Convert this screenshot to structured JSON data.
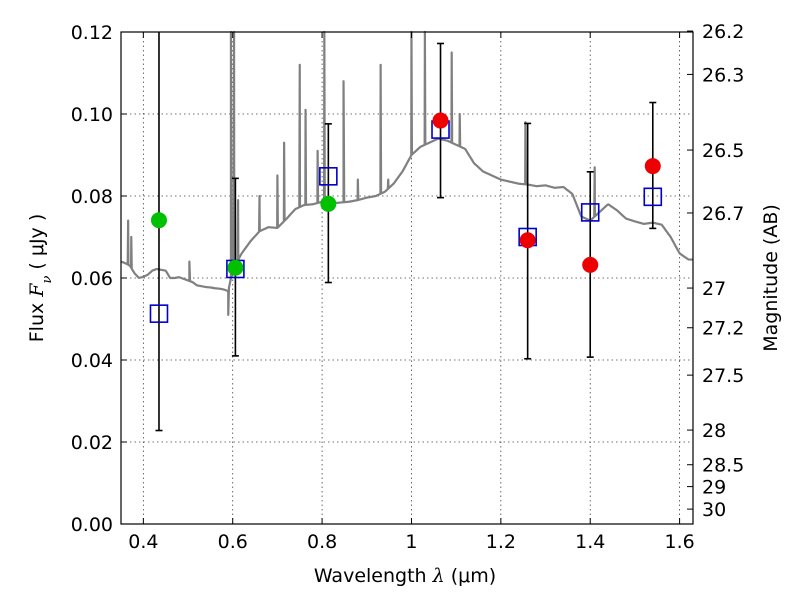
{
  "chart_data": {
    "type": "scatter",
    "xlabel": {
      "pre": "Wavelength  ",
      "var": "λ",
      "post": " (μm)"
    },
    "ylabel": {
      "pre": "Flux  ",
      "var": "F",
      "sub": "ν",
      "post": "  ( μJy )"
    },
    "y2label": "Magnitude (AB)",
    "xlim": [
      0.35,
      1.63
    ],
    "ylim": [
      0.0,
      0.12
    ],
    "grid": true,
    "x_ticks": [
      {
        "value": 0.4,
        "label": "0.4"
      },
      {
        "value": 0.6,
        "label": "0.6"
      },
      {
        "value": 0.8,
        "label": "0.8"
      },
      {
        "value": 1.0,
        "label": "1"
      },
      {
        "value": 1.2,
        "label": "1.2"
      },
      {
        "value": 1.4,
        "label": "1.4"
      },
      {
        "value": 1.6,
        "label": "1.6"
      }
    ],
    "y_ticks": [
      {
        "value": 0.0,
        "label": "0.00"
      },
      {
        "value": 0.02,
        "label": "0.02"
      },
      {
        "value": 0.04,
        "label": "0.04"
      },
      {
        "value": 0.06,
        "label": "0.06"
      },
      {
        "value": 0.08,
        "label": "0.08"
      },
      {
        "value": 0.1,
        "label": "0.10"
      },
      {
        "value": 0.12,
        "label": "0.12"
      }
    ],
    "y2_ticks": [
      {
        "value": 26.2,
        "label": "26.2"
      },
      {
        "value": 26.3,
        "label": "26.3"
      },
      {
        "value": 26.5,
        "label": "26.5"
      },
      {
        "value": 26.7,
        "label": "26.7"
      },
      {
        "value": 27.0,
        "label": "27"
      },
      {
        "value": 27.2,
        "label": "27.2"
      },
      {
        "value": 27.5,
        "label": "27.5"
      },
      {
        "value": 28.0,
        "label": "28"
      },
      {
        "value": 28.5,
        "label": "28.5"
      },
      {
        "value": 29.0,
        "label": "29"
      },
      {
        "value": 30.0,
        "label": "30"
      }
    ],
    "colors": {
      "sed": "#808080",
      "model_box": "#0000cc",
      "green": "#00c000",
      "red": "#ee0000",
      "errorbar": "#000000",
      "grid": "#444444"
    },
    "model_photometry": [
      {
        "x": 0.435,
        "y": 0.0513
      },
      {
        "x": 0.606,
        "y": 0.0622
      },
      {
        "x": 0.814,
        "y": 0.0848
      },
      {
        "x": 1.065,
        "y": 0.0962
      },
      {
        "x": 1.26,
        "y": 0.07
      },
      {
        "x": 1.4,
        "y": 0.076
      },
      {
        "x": 1.54,
        "y": 0.0798
      }
    ],
    "observed_green": [
      {
        "x": 0.435,
        "y": 0.0741,
        "ylow": 0.0228,
        "yhigh": 0.12
      },
      {
        "x": 0.606,
        "y": 0.0625,
        "ylow": 0.041,
        "yhigh": 0.0843
      },
      {
        "x": 0.814,
        "y": 0.0781,
        "ylow": 0.0589,
        "yhigh": 0.0976
      }
    ],
    "observed_red": [
      {
        "x": 1.065,
        "y": 0.0984,
        "ylow": 0.0796,
        "yhigh": 0.1172
      },
      {
        "x": 1.26,
        "y": 0.0692,
        "ylow": 0.0403,
        "yhigh": 0.0977
      },
      {
        "x": 1.4,
        "y": 0.0632,
        "ylow": 0.0407,
        "yhigh": 0.0859
      },
      {
        "x": 1.54,
        "y": 0.0873,
        "ylow": 0.0721,
        "yhigh": 0.1028
      }
    ],
    "sed_continuum": [
      [
        0.35,
        0.064
      ],
      [
        0.36,
        0.0636
      ],
      [
        0.37,
        0.063
      ],
      [
        0.38,
        0.0612
      ],
      [
        0.39,
        0.06
      ],
      [
        0.4,
        0.0603
      ],
      [
        0.41,
        0.0608
      ],
      [
        0.42,
        0.0618
      ],
      [
        0.43,
        0.0622
      ],
      [
        0.44,
        0.062
      ],
      [
        0.45,
        0.0618
      ],
      [
        0.46,
        0.06
      ],
      [
        0.47,
        0.06
      ],
      [
        0.48,
        0.0602
      ],
      [
        0.49,
        0.0598
      ],
      [
        0.5,
        0.0594
      ],
      [
        0.51,
        0.059
      ],
      [
        0.52,
        0.0582
      ],
      [
        0.53,
        0.058
      ],
      [
        0.54,
        0.0578
      ],
      [
        0.55,
        0.0577
      ],
      [
        0.56,
        0.0575
      ],
      [
        0.57,
        0.0574
      ],
      [
        0.58,
        0.0572
      ],
      [
        0.59,
        0.0568
      ],
      [
        0.6,
        0.062
      ],
      [
        0.62,
        0.066
      ],
      [
        0.64,
        0.069
      ],
      [
        0.66,
        0.0714
      ],
      [
        0.68,
        0.0724
      ],
      [
        0.7,
        0.0722
      ],
      [
        0.72,
        0.0744
      ],
      [
        0.74,
        0.0768
      ],
      [
        0.76,
        0.0778
      ],
      [
        0.78,
        0.078
      ],
      [
        0.8,
        0.0786
      ],
      [
        0.82,
        0.0782
      ],
      [
        0.84,
        0.0784
      ],
      [
        0.86,
        0.0786
      ],
      [
        0.88,
        0.079
      ],
      [
        0.9,
        0.0796
      ],
      [
        0.92,
        0.08
      ],
      [
        0.94,
        0.081
      ],
      [
        0.96,
        0.083
      ],
      [
        0.98,
        0.086
      ],
      [
        1.0,
        0.09
      ],
      [
        1.02,
        0.092
      ],
      [
        1.04,
        0.093
      ],
      [
        1.06,
        0.094
      ],
      [
        1.08,
        0.0935
      ],
      [
        1.1,
        0.0925
      ],
      [
        1.12,
        0.0915
      ],
      [
        1.14,
        0.088
      ],
      [
        1.16,
        0.086
      ],
      [
        1.18,
        0.085
      ],
      [
        1.2,
        0.084
      ],
      [
        1.22,
        0.0835
      ],
      [
        1.24,
        0.083
      ],
      [
        1.26,
        0.0828
      ],
      [
        1.28,
        0.0824
      ],
      [
        1.3,
        0.0826
      ],
      [
        1.32,
        0.082
      ],
      [
        1.34,
        0.0822
      ],
      [
        1.36,
        0.0805
      ],
      [
        1.38,
        0.075
      ],
      [
        1.4,
        0.074
      ],
      [
        1.42,
        0.076
      ],
      [
        1.44,
        0.078
      ],
      [
        1.46,
        0.0765
      ],
      [
        1.48,
        0.0745
      ],
      [
        1.5,
        0.0738
      ],
      [
        1.52,
        0.0732
      ],
      [
        1.54,
        0.0735
      ],
      [
        1.56,
        0.073
      ],
      [
        1.58,
        0.07
      ],
      [
        1.6,
        0.066
      ],
      [
        1.62,
        0.0645
      ],
      [
        1.63,
        0.0645
      ]
    ],
    "sed_lines": [
      {
        "x": 0.366,
        "peak": 0.074
      },
      {
        "x": 0.373,
        "peak": 0.07
      },
      {
        "x": 0.503,
        "peak": 0.064
      },
      {
        "x": 0.59,
        "peak": 0.051,
        "dip": true
      },
      {
        "x": 0.596,
        "peak": 0.12
      },
      {
        "x": 0.603,
        "peak": 0.12
      },
      {
        "x": 0.612,
        "peak": 0.079
      },
      {
        "x": 0.66,
        "peak": 0.08
      },
      {
        "x": 0.7,
        "peak": 0.085
      },
      {
        "x": 0.715,
        "peak": 0.093
      },
      {
        "x": 0.75,
        "peak": 0.112
      },
      {
        "x": 0.763,
        "peak": 0.101
      },
      {
        "x": 0.79,
        "peak": 0.091
      },
      {
        "x": 0.805,
        "peak": 0.12
      },
      {
        "x": 0.848,
        "peak": 0.108
      },
      {
        "x": 0.88,
        "peak": 0.084
      },
      {
        "x": 0.931,
        "peak": 0.112
      },
      {
        "x": 0.948,
        "peak": 0.084
      },
      {
        "x": 1.0,
        "peak": 0.12
      },
      {
        "x": 1.03,
        "peak": 0.12
      },
      {
        "x": 1.09,
        "peak": 0.115
      },
      {
        "x": 1.108,
        "peak": 0.1
      },
      {
        "x": 1.255,
        "peak": 0.098
      },
      {
        "x": 1.41,
        "peak": 0.087
      }
    ]
  }
}
